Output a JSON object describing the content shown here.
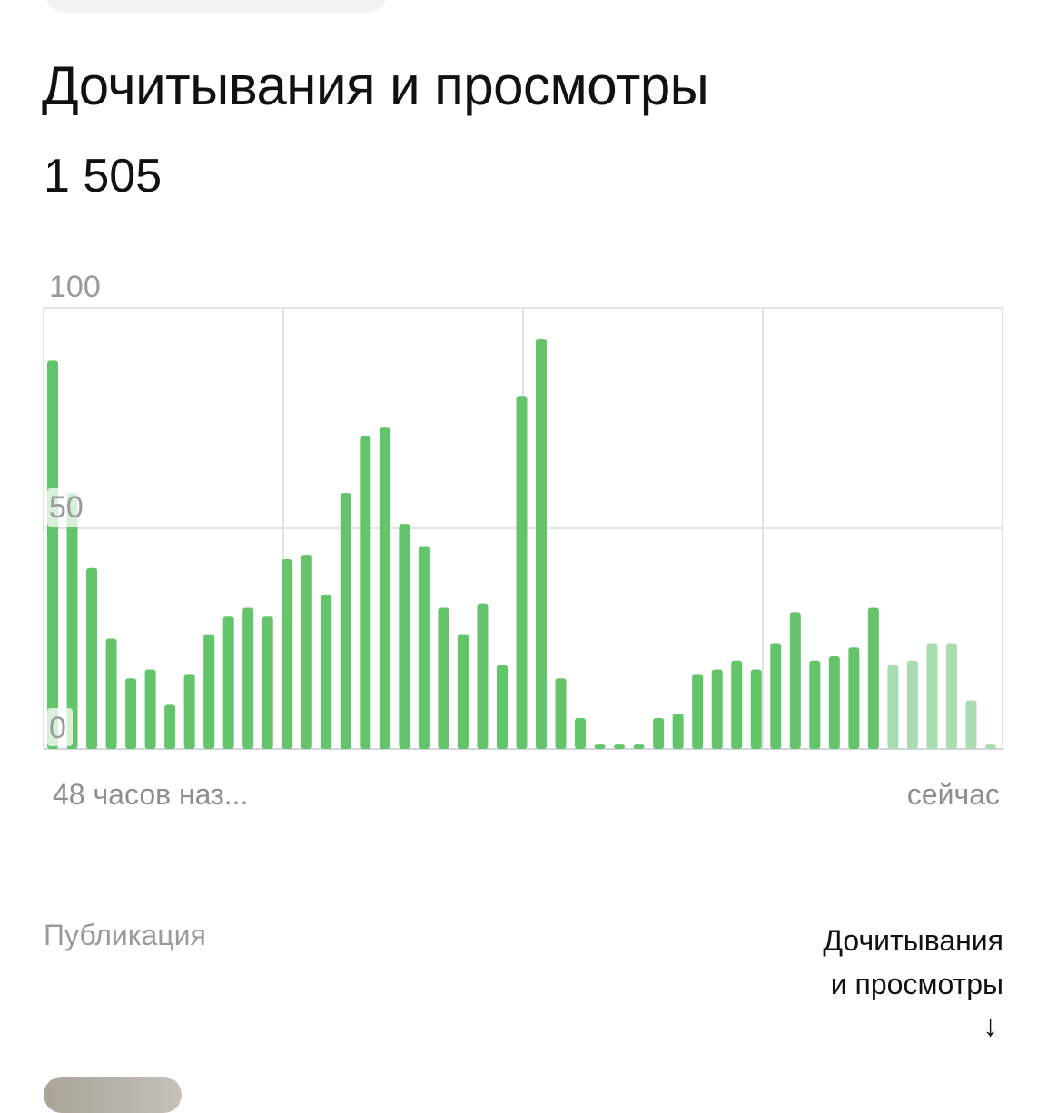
{
  "header": {
    "title": "Дочитывания и просмотры",
    "total": "1 505"
  },
  "chart_data": {
    "type": "bar",
    "y_ticks": [
      "100",
      "50",
      "0"
    ],
    "ylim": [
      0,
      100
    ],
    "grid": true,
    "x_start_label": "48 часов наз...",
    "x_end_label": "сейчас",
    "values": [
      88,
      58,
      41,
      25,
      16,
      18,
      10,
      17,
      26,
      30,
      32,
      30,
      43,
      44,
      35,
      58,
      71,
      73,
      51,
      46,
      32,
      26,
      33,
      19,
      80,
      93,
      16,
      7,
      1,
      1,
      1,
      7,
      8,
      17,
      18,
      20,
      18,
      24,
      31,
      20,
      21,
      23,
      32,
      19,
      20,
      24,
      24,
      11,
      1
    ],
    "partial_from_index": 43,
    "colors": {
      "bar": "#63c46a",
      "bar_partial": "#a9ddb0",
      "grid": "#e3e3e3"
    }
  },
  "table_header": {
    "publication_label": "Публикация",
    "metric_label_line1": "Дочитывания",
    "metric_label_line2": "и просмотры",
    "sort_arrow": "↓"
  }
}
